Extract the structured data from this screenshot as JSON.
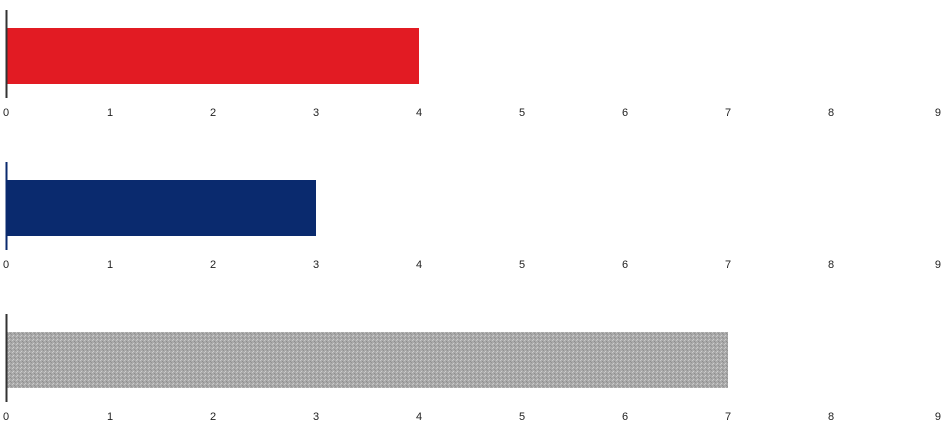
{
  "chart_data": [
    {
      "type": "bar",
      "orientation": "horizontal",
      "values": [
        4
      ],
      "xlim": [
        0,
        9
      ],
      "ticks": [
        "0",
        "1",
        "2",
        "3",
        "4",
        "5",
        "6",
        "7",
        "8",
        "9"
      ],
      "color": "#e21b23",
      "grid": false,
      "legend": "none"
    },
    {
      "type": "bar",
      "orientation": "horizontal",
      "values": [
        3
      ],
      "xlim": [
        0,
        9
      ],
      "ticks": [
        "0",
        "1",
        "2",
        "3",
        "4",
        "5",
        "6",
        "7",
        "8",
        "9"
      ],
      "color": "#0a2a6e",
      "grid": false,
      "legend": "none"
    },
    {
      "type": "bar",
      "orientation": "horizontal",
      "values": [
        7
      ],
      "xlim": [
        0,
        9
      ],
      "ticks": [
        "0",
        "1",
        "2",
        "3",
        "4",
        "5",
        "6",
        "7",
        "8",
        "9"
      ],
      "color": "#a9a9a9",
      "grid": false,
      "legend": "none"
    }
  ]
}
